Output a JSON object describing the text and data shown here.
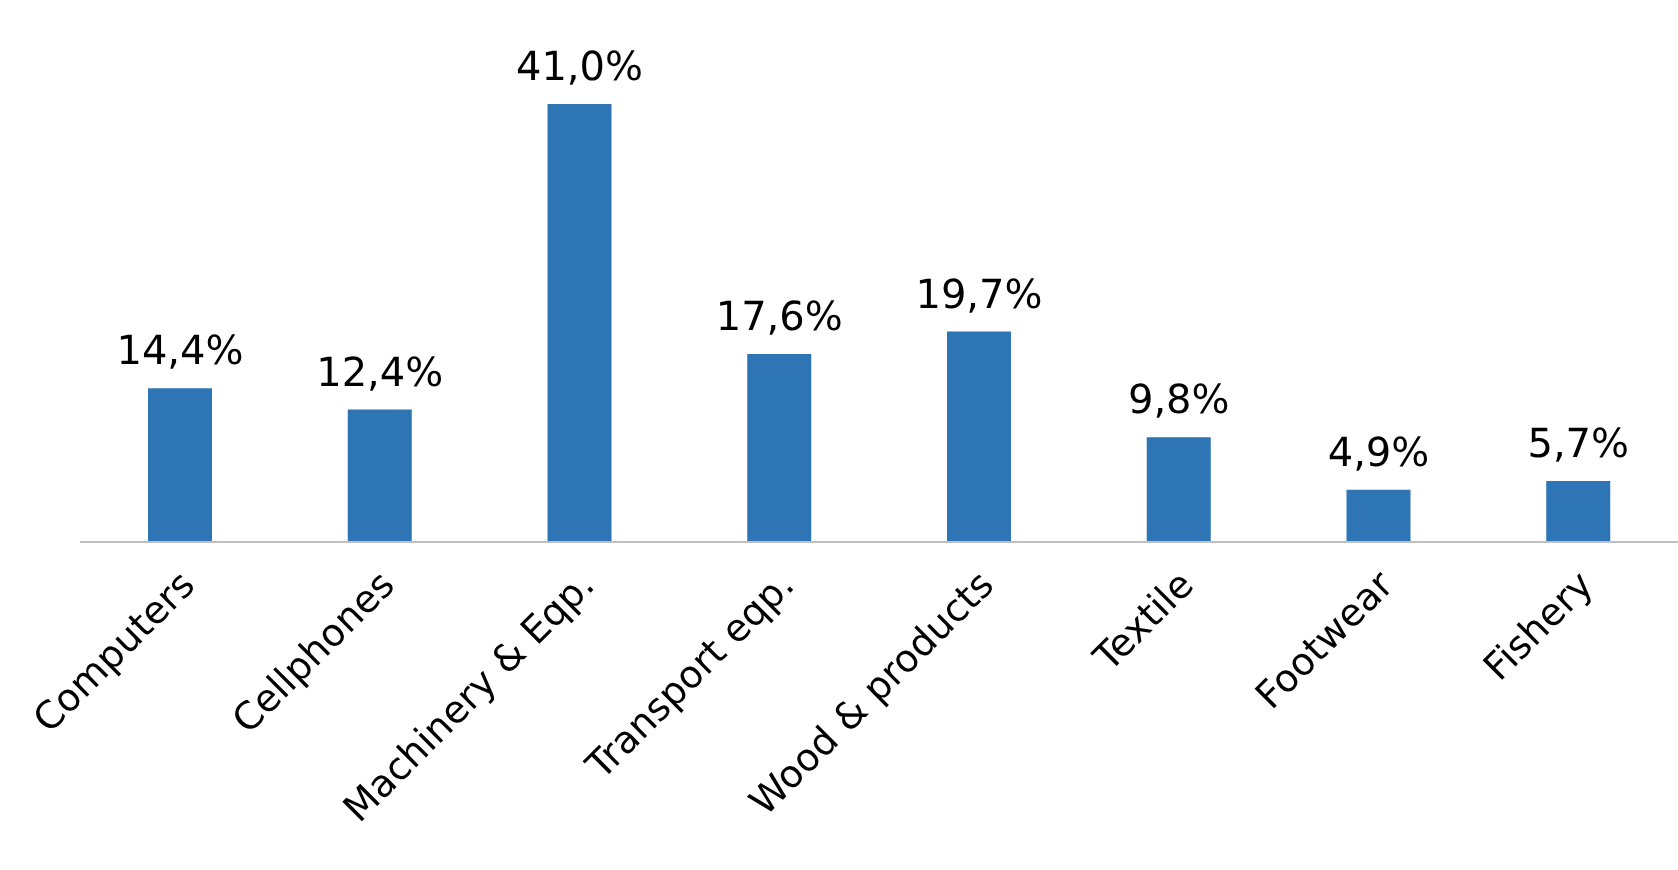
{
  "chart_data": {
    "type": "bar",
    "categories": [
      "Computers",
      "Cellphones",
      "Machinery & Eqp.",
      "Transport eqp.",
      "Wood & products",
      "Textile",
      "Footwear",
      "Fishery"
    ],
    "values": [
      14.4,
      12.4,
      41.0,
      17.6,
      19.7,
      9.8,
      4.9,
      5.7
    ],
    "value_labels": [
      "14,4%",
      "12,4%",
      "41,0%",
      "17,6%",
      "19,7%",
      "9,8%",
      "4,9%",
      "5,7%"
    ],
    "color": "#2e75b6",
    "grid": false,
    "legend": false
  }
}
